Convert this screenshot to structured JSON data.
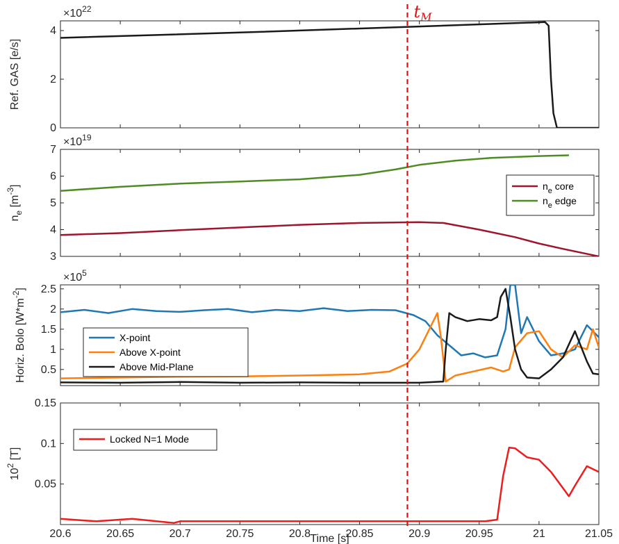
{
  "marker_label": "t",
  "marker_sub": "M",
  "marker_x": 20.89,
  "marker_color": "#dd1111",
  "xlabel": "Time [s]",
  "xticks": [
    "20.6",
    "20.65",
    "20.7",
    "20.75",
    "20.8",
    "20.85",
    "20.9",
    "20.95",
    "21",
    "21.05"
  ],
  "chart_data": [
    {
      "type": "line",
      "ylabel": "Ref. GAS [e/s]",
      "exponent_base": "×10",
      "exponent_power": "22",
      "ylim": [
        0,
        4.4
      ],
      "yticks": [
        "0",
        "2",
        "4"
      ],
      "series": [
        {
          "color": "#1a1a1a",
          "x": [
            20.6,
            20.75,
            20.9,
            21.0,
            21.005,
            21.008,
            21.01,
            21.012,
            21.015,
            21.05
          ],
          "y": [
            3.7,
            3.92,
            4.17,
            4.34,
            4.35,
            4.2,
            2.0,
            0.6,
            0.0,
            0.0
          ]
        }
      ]
    },
    {
      "type": "line",
      "ylabel": "n_e [m^-3]",
      "exponent_base": "×10",
      "exponent_power": "19",
      "ylim": [
        3,
        7
      ],
      "yticks": [
        "3",
        "4",
        "5",
        "6",
        "7"
      ],
      "legend": [
        "core",
        "edge"
      ],
      "legend_prefix": "n",
      "legend_sub": "e",
      "legend_position": "right",
      "series": [
        {
          "name": "core",
          "color": "#a0152e",
          "x": [
            20.6,
            20.65,
            20.7,
            20.75,
            20.8,
            20.85,
            20.9,
            20.92,
            20.95,
            20.98,
            21.0,
            21.02,
            21.05
          ],
          "y": [
            3.8,
            3.87,
            3.98,
            4.08,
            4.18,
            4.25,
            4.28,
            4.25,
            4.0,
            3.72,
            3.48,
            3.28,
            3.0
          ]
        },
        {
          "name": "edge",
          "color": "#4e8b23",
          "x": [
            20.6,
            20.65,
            20.7,
            20.75,
            20.8,
            20.85,
            20.88,
            20.9,
            20.93,
            20.96,
            21.0,
            21.025
          ],
          "y": [
            5.45,
            5.6,
            5.72,
            5.8,
            5.88,
            6.05,
            6.25,
            6.42,
            6.58,
            6.68,
            6.75,
            6.78
          ]
        }
      ]
    },
    {
      "type": "line",
      "ylabel": "Horiz. Bolo [W*m^-2]",
      "exponent_base": "×10",
      "exponent_power": "5",
      "ylim": [
        0.1,
        2.6
      ],
      "yticks": [
        "0.5",
        "1",
        "1.5",
        "2",
        "2.5"
      ],
      "legend": [
        "X-point",
        "Above X-point",
        "Above Mid-Plane"
      ],
      "legend_position": "left",
      "series": [
        {
          "name": "X-point",
          "color": "#1f77b4",
          "x": [
            20.6,
            20.62,
            20.64,
            20.66,
            20.68,
            20.7,
            20.72,
            20.74,
            20.76,
            20.78,
            20.8,
            20.82,
            20.84,
            20.86,
            20.88,
            20.895,
            20.905,
            20.915,
            20.925,
            20.935,
            20.945,
            20.955,
            20.965,
            20.972,
            20.976,
            20.98,
            20.985,
            20.99,
            21.0,
            21.01,
            21.02,
            21.03,
            21.04,
            21.05
          ],
          "y": [
            1.92,
            1.98,
            1.9,
            2.0,
            1.95,
            1.93,
            1.97,
            2.0,
            1.92,
            1.98,
            1.95,
            2.02,
            1.95,
            1.98,
            1.97,
            1.85,
            1.7,
            1.35,
            1.1,
            0.85,
            0.9,
            0.8,
            0.85,
            1.5,
            2.6,
            2.6,
            1.4,
            1.8,
            1.2,
            0.85,
            0.9,
            1.0,
            1.6,
            1.3
          ]
        },
        {
          "name": "Above X-point",
          "color": "#ff7f0e",
          "x": [
            20.6,
            20.65,
            20.7,
            20.75,
            20.8,
            20.85,
            20.875,
            20.89,
            20.9,
            20.91,
            20.915,
            20.918,
            20.922,
            20.93,
            20.945,
            20.96,
            20.965,
            20.97,
            20.975,
            20.98,
            20.99,
            21.0,
            21.01,
            21.02,
            21.03,
            21.04,
            21.045,
            21.05
          ],
          "y": [
            0.28,
            0.3,
            0.32,
            0.33,
            0.35,
            0.38,
            0.45,
            0.65,
            1.0,
            1.6,
            1.9,
            1.3,
            0.2,
            0.35,
            0.45,
            0.55,
            0.5,
            0.45,
            0.5,
            1.05,
            1.4,
            1.45,
            1.0,
            0.8,
            1.1,
            1.0,
            1.5,
            1.05
          ]
        },
        {
          "name": "Above Mid-Plane",
          "color": "#1a1a1a",
          "x": [
            20.6,
            20.65,
            20.7,
            20.75,
            20.8,
            20.85,
            20.9,
            20.92,
            20.922,
            20.925,
            20.93,
            20.94,
            20.95,
            20.96,
            20.965,
            20.968,
            20.972,
            20.976,
            20.98,
            20.985,
            20.99,
            21.0,
            21.01,
            21.02,
            21.03,
            21.04,
            21.045,
            21.05
          ],
          "y": [
            0.18,
            0.17,
            0.19,
            0.17,
            0.18,
            0.17,
            0.17,
            0.2,
            1.0,
            1.9,
            1.8,
            1.7,
            1.75,
            1.72,
            1.8,
            2.3,
            2.5,
            1.8,
            1.0,
            0.5,
            0.3,
            0.28,
            0.5,
            0.8,
            1.45,
            0.7,
            0.4,
            0.38
          ]
        }
      ]
    },
    {
      "type": "line",
      "ylabel": "10^2 [T]",
      "exponent_base": "",
      "exponent_power": "",
      "ylim": [
        0,
        0.15
      ],
      "yticks": [
        "0.05",
        "0.1",
        "0.15"
      ],
      "legend": [
        "Locked N=1 Mode"
      ],
      "legend_position": "left",
      "series": [
        {
          "name": "Locked N=1 Mode",
          "color": "#ee1c1c",
          "x": [
            20.6,
            20.63,
            20.66,
            20.695,
            20.7,
            20.75,
            20.8,
            20.85,
            20.9,
            20.94,
            20.955,
            20.965,
            20.97,
            20.975,
            20.98,
            20.99,
            21.0,
            21.01,
            21.02,
            21.025,
            21.03,
            21.04,
            21.05
          ],
          "y": [
            0.007,
            0.004,
            0.007,
            0.002,
            0.004,
            0.004,
            0.004,
            0.004,
            0.004,
            0.004,
            0.004,
            0.006,
            0.06,
            0.095,
            0.094,
            0.083,
            0.08,
            0.065,
            0.045,
            0.035,
            0.048,
            0.072,
            0.065
          ]
        }
      ]
    }
  ]
}
